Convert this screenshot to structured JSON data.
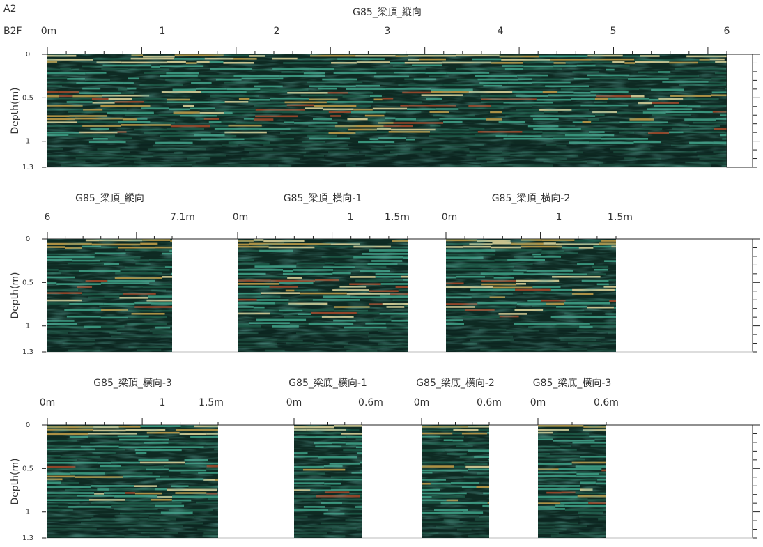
{
  "header": {
    "plot_id": "A2",
    "floor": "B2F"
  },
  "rows": [
    {
      "depth_axis": {
        "label": "Depth(m)",
        "ticks": [
          "0",
          "0.5",
          "1",
          "1.3"
        ]
      },
      "panels": [
        {
          "title": "G85_梁頂_縱向",
          "ticks": [
            "0m",
            "1",
            "2",
            "3",
            "4",
            "5",
            "6"
          ]
        }
      ]
    },
    {
      "depth_axis": {
        "label": "Depth(m)",
        "ticks": [
          "0",
          "0.5",
          "1",
          "1.3"
        ]
      },
      "panels": [
        {
          "title": "G85_梁頂_縱向",
          "ticks": [
            "6",
            "7.1m"
          ]
        },
        {
          "title": "G85_梁頂_橫向-1",
          "ticks": [
            "0m",
            "1",
            "1.5m"
          ]
        },
        {
          "title": "G85_梁頂_橫向-2",
          "ticks": [
            "0m",
            "1",
            "1.5m"
          ]
        }
      ]
    },
    {
      "depth_axis": {
        "label": "Depth(m)",
        "ticks": [
          "0",
          "0.5",
          "1",
          "1.3"
        ]
      },
      "panels": [
        {
          "title": "G85_梁頂_橫向-3",
          "ticks": [
            "0m",
            "1",
            "1.5m"
          ]
        },
        {
          "title": "G85_梁底_橫向-1",
          "ticks": [
            "0m",
            "0.6m"
          ]
        },
        {
          "title": "G85_梁底_橫向-2",
          "ticks": [
            "0m",
            "0.6m"
          ]
        },
        {
          "title": "G85_梁底_橫向-3",
          "ticks": [
            "0m",
            "0.6m"
          ]
        }
      ]
    }
  ]
}
